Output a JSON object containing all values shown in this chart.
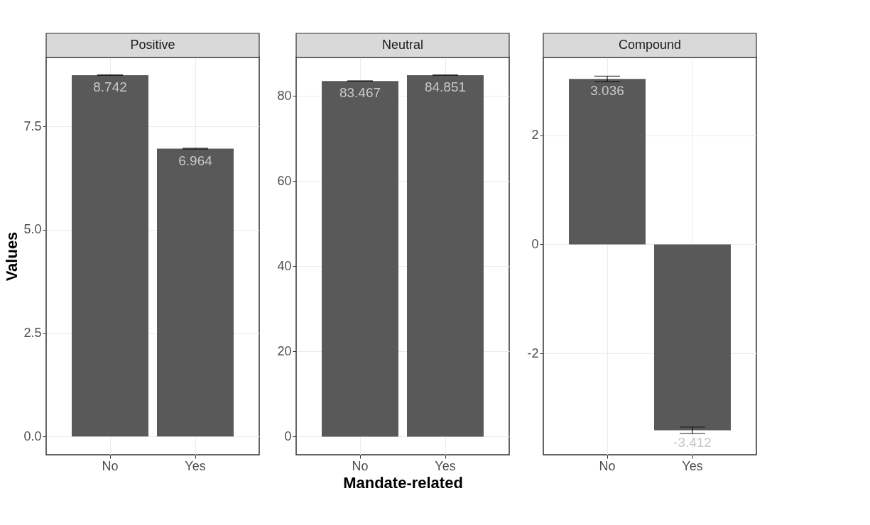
{
  "chart_data": [
    {
      "type": "bar",
      "title": "Positive",
      "ylabel": "Values",
      "categories": [
        "No",
        "Yes"
      ],
      "values": [
        8.742,
        6.964
      ],
      "errors": [
        0.01,
        0.01
      ],
      "color": "#595959",
      "data_labels": true,
      "ylim": [
        -0.44,
        9.17
      ],
      "yticks": [
        {
          "value": 0,
          "label": "0.0"
        },
        2.5,
        {
          "value": 5,
          "label": "5.0"
        },
        7.5
      ],
      "grid": true
    },
    {
      "type": "bar",
      "title": "Neutral",
      "xlabel": "Mandate-related",
      "categories": [
        "No",
        "Yes"
      ],
      "values": [
        83.467,
        84.851
      ],
      "errors": [
        0.05,
        0.05
      ],
      "color": "#595959",
      "data_labels": true,
      "ylim": [
        -4.26,
        89.0
      ],
      "yticks": [
        0,
        20,
        40,
        60,
        80
      ],
      "grid": true
    },
    {
      "type": "bar",
      "title": "Compound",
      "categories": [
        "No",
        "Yes"
      ],
      "values": [
        3.036,
        -3.412
      ],
      "errors": [
        0.05,
        0.06
      ],
      "color": "#595959",
      "data_labels": true,
      "ylim": [
        -3.86,
        3.43
      ],
      "yticks": [
        -2,
        0,
        2
      ],
      "grid": true
    }
  ]
}
